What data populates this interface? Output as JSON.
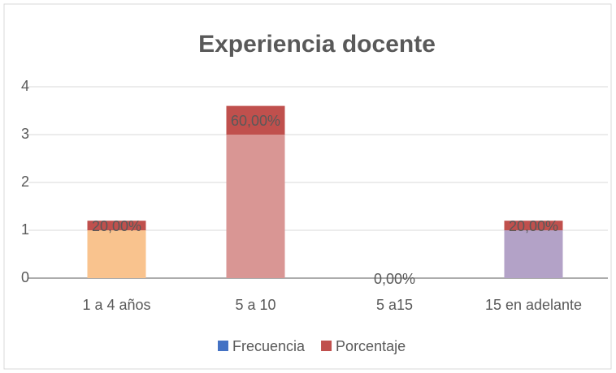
{
  "chart_data": {
    "type": "stacked_bar",
    "title": "Experiencia docente",
    "categories": [
      "1 a 4 años",
      "5 a 10",
      "5 a15",
      "15 en adelante"
    ],
    "series": [
      {
        "name": "Frecuencia",
        "color": "#4472c4",
        "point_colors": [
          "#f9c38e",
          "#d99694",
          "#4472c4",
          "#b3a2c7"
        ],
        "values": [
          1,
          3,
          0,
          1
        ]
      },
      {
        "name": "Porcentaje",
        "color": "#c0504d",
        "values": [
          0.2,
          0.6,
          0,
          0.2
        ],
        "value_labels": [
          "20,00%",
          "60,00%",
          "0,00%",
          "20,00%"
        ]
      }
    ],
    "ylim": [
      0,
      4
    ],
    "yticks": [
      0,
      1,
      2,
      3,
      4
    ],
    "grid": true,
    "legend": "bottom"
  }
}
